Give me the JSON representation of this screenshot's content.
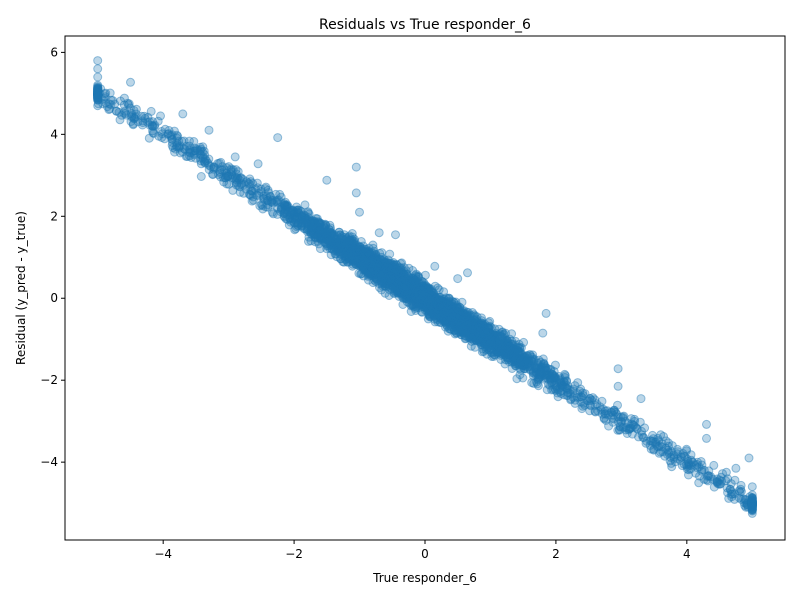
{
  "chart_data": {
    "type": "scatter",
    "title": "Residuals vs True responder_6",
    "xlabel": "True responder_6",
    "ylabel": "Residual (y_pred - y_true)",
    "xlim": [
      -5.5,
      5.5
    ],
    "ylim": [
      -5.9,
      6.4
    ],
    "xticks": [
      -4,
      -2,
      0,
      2,
      4
    ],
    "yticks": [
      -4,
      -2,
      0,
      2,
      4,
      6
    ],
    "xtick_labels": [
      "−4",
      "−2",
      "0",
      "2",
      "4"
    ],
    "ytick_labels": [
      "−4",
      "−2",
      "0",
      "2",
      "4",
      "6"
    ],
    "grid": false,
    "marker_color": "#1f77b4",
    "trend": {
      "slope": -1.0,
      "intercept": 0.0,
      "spread": 0.3
    },
    "points": [
      [
        -5.0,
        5.8
      ],
      [
        -5.0,
        5.6
      ],
      [
        -5.0,
        5.4
      ],
      [
        -5.0,
        5.2
      ],
      [
        -5.0,
        4.9
      ],
      [
        -5.0,
        4.7
      ],
      [
        -4.5,
        5.27
      ],
      [
        -2.25,
        3.92
      ],
      [
        -1.05,
        3.2
      ],
      [
        -1.5,
        2.88
      ],
      [
        -1.05,
        2.57
      ],
      [
        -1.0,
        2.1
      ],
      [
        -0.45,
        1.55
      ],
      [
        -0.7,
        1.6
      ],
      [
        0.15,
        0.78
      ],
      [
        0.65,
        0.62
      ],
      [
        0.5,
        0.48
      ],
      [
        1.85,
        -0.37
      ],
      [
        1.8,
        -0.85
      ],
      [
        2.95,
        -1.72
      ],
      [
        2.95,
        -2.15
      ],
      [
        3.3,
        -2.45
      ],
      [
        4.3,
        -3.08
      ],
      [
        4.3,
        -3.42
      ],
      [
        4.95,
        -3.9
      ],
      [
        4.75,
        -4.15
      ],
      [
        5.0,
        -4.6
      ],
      [
        5.0,
        -4.8
      ],
      [
        5.0,
        -5.0
      ],
      [
        5.0,
        -5.15
      ],
      [
        5.0,
        -5.25
      ],
      [
        -3.7,
        4.5
      ],
      [
        -3.3,
        4.1
      ],
      [
        -2.9,
        3.45
      ],
      [
        -2.55,
        3.28
      ]
    ]
  }
}
